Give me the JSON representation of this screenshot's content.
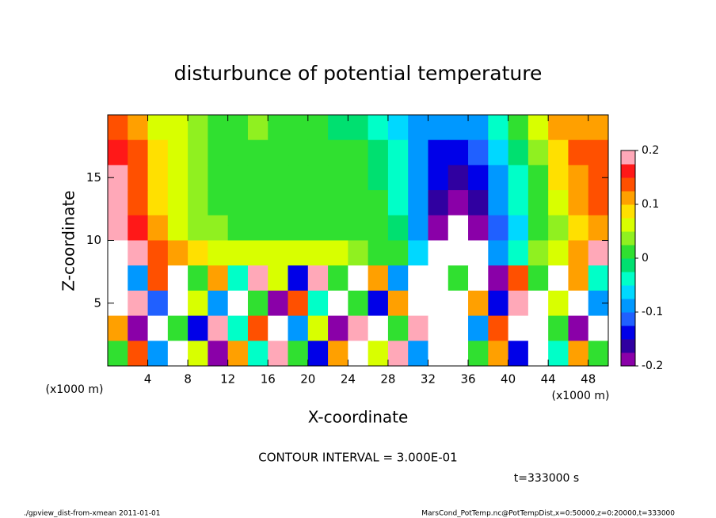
{
  "chart_data": {
    "type": "heatmap",
    "title": "disturbunce of potential temperature",
    "x_label": "X-coordinate",
    "y_label": "Z-coordinate",
    "x_unit": "(x1000 m)",
    "y_unit": "(x1000 m)",
    "annotation": "CONTOUR INTERVAL = 3.000E-01",
    "time_label": "t=333000 s",
    "footer_left": "./gpview_dist-from-xmean  2011-01-01",
    "footer_right": "MarsCond_PotTemp.nc@PotTempDist,x=0:50000,z=0:20000,t=333000",
    "xlim": [
      0,
      50
    ],
    "ylim": [
      0,
      20
    ],
    "xticks": [
      4,
      8,
      12,
      16,
      20,
      24,
      28,
      32,
      36,
      40,
      44,
      48
    ],
    "yticks": [
      5,
      10,
      15
    ],
    "zlim": [
      -0.2,
      0.2
    ],
    "zticks": [
      -0.2,
      -0.1,
      0,
      0.1,
      0.2
    ],
    "colors": [
      "#8a00a8",
      "#3000a0",
      "#0000e8",
      "#2060ff",
      "#0098ff",
      "#00d8ff",
      "#00ffc8",
      "#00e070",
      "#30e030",
      "#90f020",
      "#d8ff00",
      "#ffe000",
      "#ffa000",
      "#ff5000",
      "#ff1818",
      "#ffa8b8"
    ],
    "x": [
      1,
      3,
      5,
      7,
      9,
      11,
      13,
      15,
      17,
      19,
      21,
      23,
      25,
      27,
      29,
      31,
      33,
      35,
      37,
      39,
      41,
      43,
      45,
      47,
      49
    ],
    "y": [
      19,
      17,
      15,
      13,
      11,
      9,
      7,
      5,
      3,
      1
    ],
    "z": [
      [
        0.15,
        0.1,
        0.07,
        0.05,
        0.03,
        0.02,
        0.02,
        0.03,
        0.02,
        0.01,
        0.0,
        -0.01,
        -0.02,
        -0.04,
        -0.06,
        -0.08,
        -0.1,
        -0.1,
        -0.08,
        -0.04,
        0.0,
        0.05,
        0.1,
        0.12,
        0.12
      ],
      [
        0.17,
        0.13,
        0.08,
        0.05,
        0.03,
        0.02,
        0.02,
        0.02,
        0.02,
        0.01,
        0.01,
        0.0,
        0.0,
        -0.02,
        -0.05,
        -0.09,
        -0.13,
        -0.14,
        -0.12,
        -0.07,
        -0.02,
        0.03,
        0.09,
        0.13,
        0.14
      ],
      [
        0.18,
        0.14,
        0.08,
        0.05,
        0.03,
        0.02,
        0.01,
        0.02,
        0.02,
        0.02,
        0.01,
        0.01,
        0.0,
        -0.01,
        -0.04,
        -0.1,
        -0.15,
        -0.17,
        -0.15,
        -0.09,
        -0.04,
        0.02,
        0.08,
        0.12,
        0.15
      ],
      [
        0.19,
        0.15,
        0.09,
        0.05,
        0.04,
        0.02,
        0.01,
        0.01,
        0.02,
        0.02,
        0.02,
        0.01,
        0.01,
        0.0,
        -0.03,
        -0.1,
        -0.17,
        -0.19,
        -0.17,
        -0.1,
        -0.05,
        0.01,
        0.06,
        0.1,
        0.13
      ],
      [
        0.2,
        0.16,
        0.1,
        0.06,
        0.04,
        0.03,
        0.01,
        0.01,
        0.02,
        0.02,
        0.02,
        0.02,
        0.01,
        0.0,
        -0.02,
        -0.09,
        -0.18,
        -0.22,
        -0.2,
        -0.11,
        -0.06,
        0.0,
        0.04,
        0.08,
        0.12
      ],
      [
        0.22,
        0.2,
        0.14,
        0.1,
        0.08,
        0.06,
        0.05,
        0.05,
        0.05,
        0.05,
        0.06,
        0.05,
        0.04,
        0.02,
        0.0,
        -0.06,
        -0.25,
        -0.25,
        -0.25,
        -0.08,
        -0.04,
        0.03,
        0.05,
        0.1,
        0.2
      ],
      [
        0.25,
        -0.1,
        0.15,
        -0.25,
        0.0,
        0.12,
        -0.05,
        0.2,
        0.05,
        -0.15,
        0.18,
        0.0,
        -0.25,
        0.1,
        -0.1,
        0.25,
        -0.25,
        0.0,
        0.25,
        -0.2,
        0.15,
        0.0,
        -0.25,
        0.1,
        -0.05
      ],
      [
        -0.25,
        0.18,
        -0.12,
        0.25,
        0.05,
        -0.1,
        0.22,
        0.02,
        -0.18,
        0.15,
        -0.05,
        0.25,
        0.0,
        -0.15,
        0.12,
        -0.25,
        0.25,
        -0.25,
        0.1,
        -0.15,
        0.2,
        -0.25,
        0.05,
        0.25,
        -0.1
      ],
      [
        0.1,
        -0.2,
        0.25,
        0.0,
        -0.15,
        0.2,
        -0.05,
        0.15,
        0.25,
        -0.1,
        0.05,
        -0.2,
        0.18,
        -0.25,
        0.0,
        0.2,
        -0.25,
        0.25,
        -0.1,
        0.15,
        -0.25,
        0.22,
        0.0,
        -0.2,
        0.25
      ],
      [
        0.0,
        0.15,
        -0.1,
        0.22,
        0.05,
        -0.18,
        0.12,
        -0.05,
        0.2,
        0.0,
        -0.15,
        0.1,
        -0.22,
        0.05,
        0.18,
        -0.1,
        0.25,
        -0.25,
        0.0,
        0.12,
        -0.15,
        0.25,
        -0.05,
        0.1,
        0.0
      ]
    ]
  }
}
